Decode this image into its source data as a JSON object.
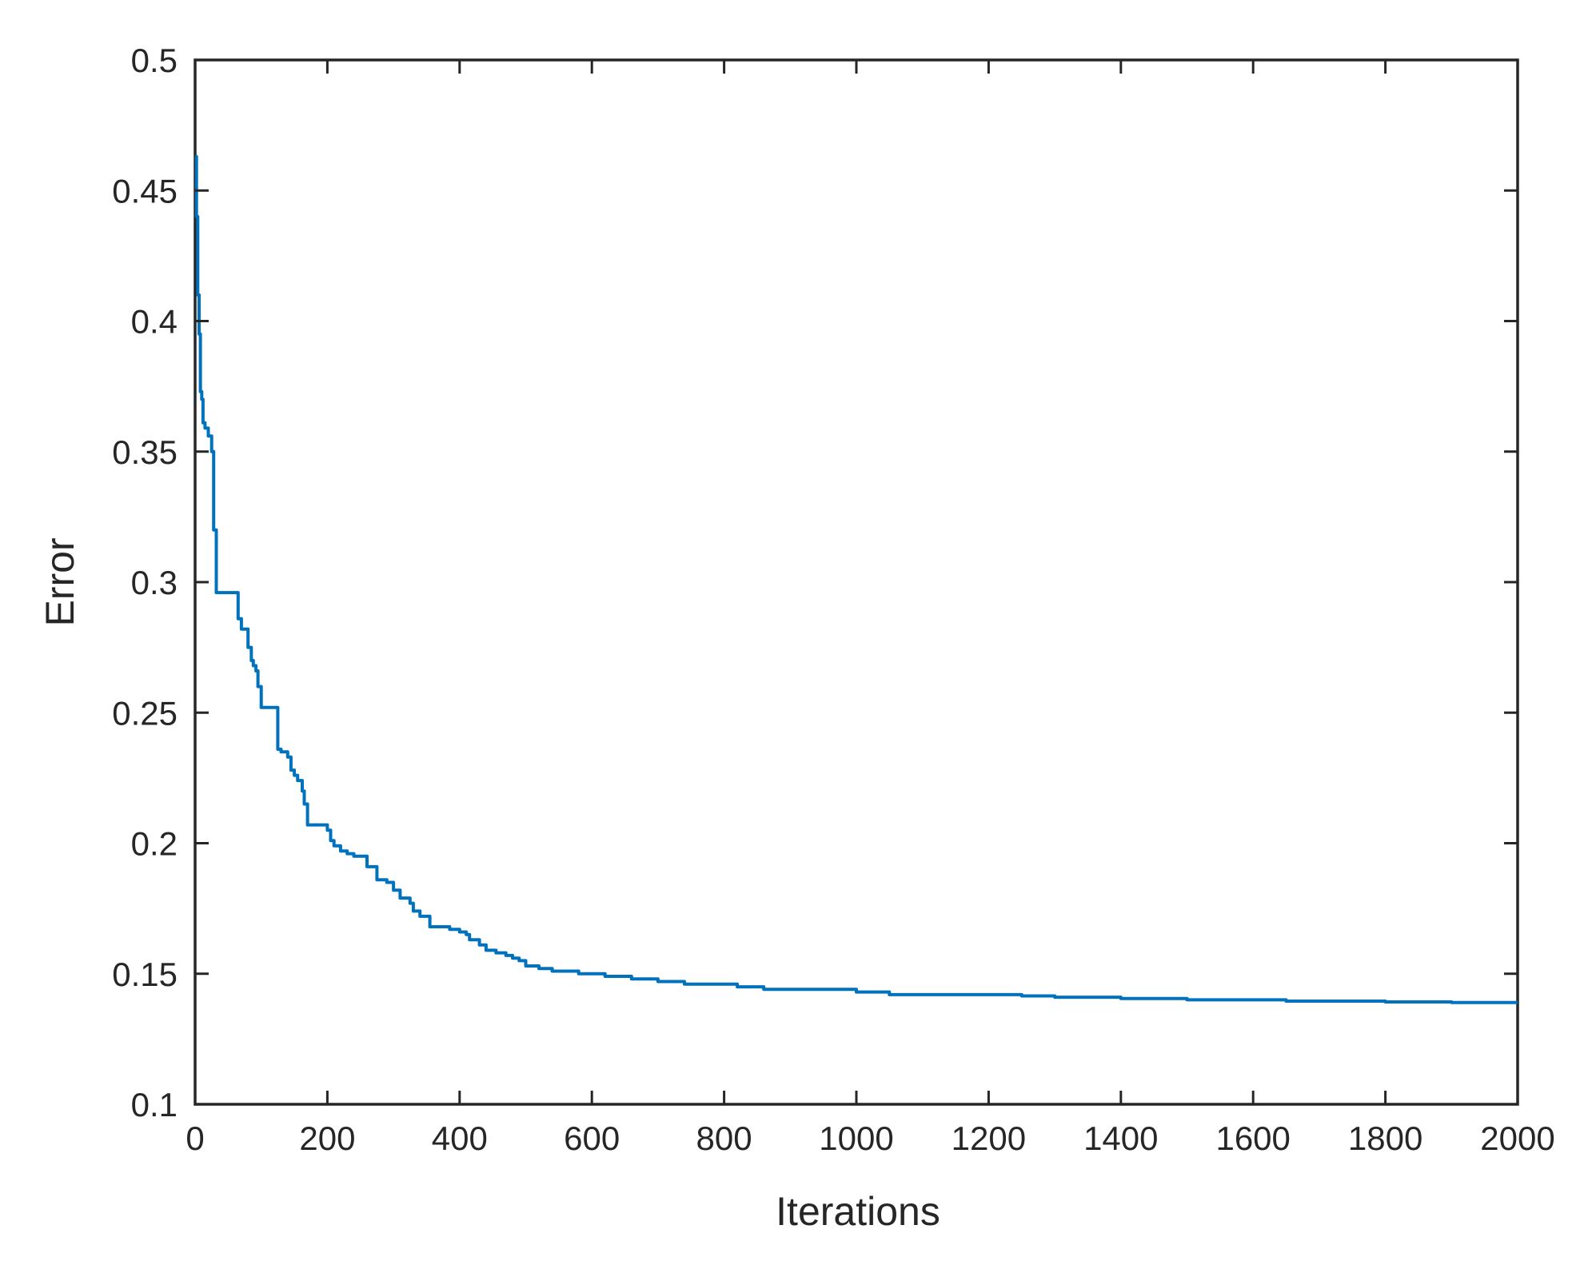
{
  "chart_data": {
    "type": "line",
    "title": "",
    "xlabel": "Iterations",
    "ylabel": "Error",
    "xlim": [
      0,
      2000
    ],
    "ylim": [
      0.1,
      0.5
    ],
    "xticks": [
      0,
      200,
      400,
      600,
      800,
      1000,
      1200,
      1400,
      1600,
      1800,
      2000
    ],
    "xtick_labels": [
      "0",
      "200",
      "400",
      "600",
      "800",
      "1000",
      "1200",
      "1400",
      "1600",
      "1800",
      "2000"
    ],
    "yticks": [
      0.1,
      0.15,
      0.2,
      0.25,
      0.3,
      0.35,
      0.4,
      0.45,
      0.5
    ],
    "ytick_labels": [
      "0.1",
      "0.15",
      "0.2",
      "0.25",
      "0.3",
      "0.35",
      "0.4",
      "0.45",
      "0.5"
    ],
    "grid": false,
    "line_color": "#0072BD",
    "axis_color": "#262626",
    "series": [
      {
        "step": true,
        "x": [
          0,
          2,
          4,
          6,
          8,
          10,
          12,
          15,
          20,
          25,
          28,
          32,
          65,
          70,
          80,
          85,
          88,
          92,
          95,
          100,
          105,
          125,
          130,
          140,
          145,
          150,
          155,
          162,
          165,
          170,
          190,
          200,
          205,
          210,
          220,
          230,
          240,
          260,
          275,
          290,
          300,
          310,
          325,
          330,
          340,
          355,
          385,
          400,
          410,
          415,
          430,
          440,
          455,
          470,
          480,
          490,
          500,
          520,
          540,
          560,
          580,
          620,
          660,
          700,
          740,
          780,
          820,
          860,
          940,
          1000,
          1050,
          1150,
          1250,
          1300,
          1400,
          1500,
          1600,
          1650,
          1800,
          1900,
          2000
        ],
        "y": [
          0.463,
          0.44,
          0.41,
          0.395,
          0.373,
          0.37,
          0.361,
          0.359,
          0.356,
          0.35,
          0.32,
          0.296,
          0.286,
          0.282,
          0.275,
          0.27,
          0.268,
          0.266,
          0.26,
          0.252,
          0.252,
          0.236,
          0.235,
          0.233,
          0.228,
          0.226,
          0.224,
          0.22,
          0.215,
          0.207,
          0.207,
          0.205,
          0.201,
          0.199,
          0.197,
          0.196,
          0.195,
          0.191,
          0.186,
          0.185,
          0.182,
          0.179,
          0.177,
          0.174,
          0.172,
          0.168,
          0.167,
          0.166,
          0.165,
          0.163,
          0.161,
          0.159,
          0.158,
          0.157,
          0.156,
          0.155,
          0.153,
          0.152,
          0.151,
          0.151,
          0.15,
          0.149,
          0.148,
          0.147,
          0.146,
          0.146,
          0.145,
          0.144,
          0.144,
          0.143,
          0.142,
          0.142,
          0.1415,
          0.141,
          0.1405,
          0.14,
          0.14,
          0.1395,
          0.1392,
          0.139,
          0.139
        ]
      }
    ]
  }
}
